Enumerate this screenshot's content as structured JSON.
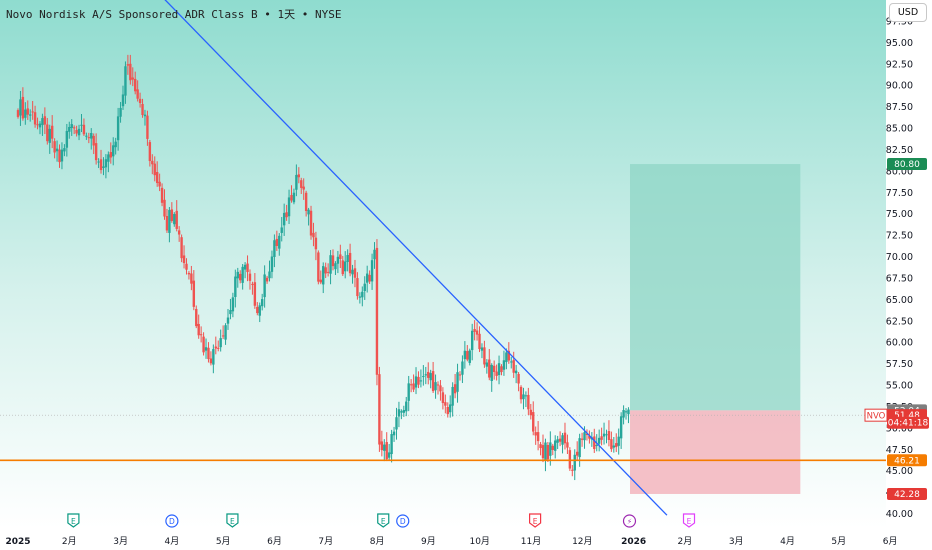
{
  "header": {
    "title": "Novo Nordisk A/S Sponsored ADR Class B • 1天 • NYSE",
    "currency_button": "USD"
  },
  "colors": {
    "up": "#26a69a",
    "down": "#ef5350",
    "trendline": "#2962ff",
    "support": "#f57c00",
    "target_zone": "#8fd6c6",
    "stop_zone": "#f3b5bd",
    "target_badge": "#1b8c55",
    "stop_badge": "#e53935",
    "event_earnings": "#089981",
    "event_dividend": "#2962ff",
    "event_earnings_red": "#f23645",
    "event_flash": "#9c27b0",
    "event_earnings_future": "#e040fb"
  },
  "chart_data": {
    "type": "candlestick",
    "title": "Novo Nordisk A/S Sponsored ADR Class B • 1天 • NYSE",
    "y_axis": {
      "ticks": [
        "40.00",
        "42.50",
        "45.00",
        "47.50",
        "50.00",
        "52.50",
        "55.00",
        "57.50",
        "60.00",
        "62.50",
        "65.00",
        "67.50",
        "70.00",
        "72.50",
        "75.00",
        "77.50",
        "80.00",
        "82.50",
        "85.00",
        "87.50",
        "90.00",
        "92.50",
        "95.00",
        "97.50"
      ],
      "range": [
        39.5,
        98.5
      ],
      "position": "right"
    },
    "x_axis": {
      "labels": [
        "2025",
        "2月",
        "3月",
        "4月",
        "5月",
        "6月",
        "7月",
        "8月",
        "9月",
        "10月",
        "11月",
        "12月",
        "2026",
        "2月",
        "3月",
        "4月",
        "5月",
        "6月"
      ],
      "label_months": [
        0,
        1,
        2,
        3,
        4,
        5,
        6,
        7,
        8,
        9,
        10,
        11,
        12,
        13,
        14,
        15,
        16,
        17
      ]
    },
    "price_path": [
      {
        "m": 0.0,
        "p": 87.5
      },
      {
        "m": 0.3,
        "p": 86.5
      },
      {
        "m": 0.6,
        "p": 84
      },
      {
        "m": 0.8,
        "p": 81
      },
      {
        "m": 1.0,
        "p": 85
      },
      {
        "m": 1.3,
        "p": 85.5
      },
      {
        "m": 1.5,
        "p": 82
      },
      {
        "m": 1.7,
        "p": 80
      },
      {
        "m": 1.9,
        "p": 83
      },
      {
        "m": 2.1,
        "p": 92
      },
      {
        "m": 2.3,
        "p": 90
      },
      {
        "m": 2.45,
        "p": 87
      },
      {
        "m": 2.6,
        "p": 80
      },
      {
        "m": 2.75,
        "p": 79
      },
      {
        "m": 2.9,
        "p": 74
      },
      {
        "m": 3.05,
        "p": 76
      },
      {
        "m": 3.2,
        "p": 70
      },
      {
        "m": 3.35,
        "p": 68
      },
      {
        "m": 3.5,
        "p": 62
      },
      {
        "m": 3.65,
        "p": 59
      },
      {
        "m": 3.8,
        "p": 58.5
      },
      {
        "m": 3.95,
        "p": 61
      },
      {
        "m": 4.1,
        "p": 63
      },
      {
        "m": 4.25,
        "p": 67
      },
      {
        "m": 4.4,
        "p": 69
      },
      {
        "m": 4.55,
        "p": 66
      },
      {
        "m": 4.7,
        "p": 64
      },
      {
        "m": 4.85,
        "p": 68
      },
      {
        "m": 5.0,
        "p": 71
      },
      {
        "m": 5.15,
        "p": 73
      },
      {
        "m": 5.3,
        "p": 77
      },
      {
        "m": 5.45,
        "p": 80
      },
      {
        "m": 5.6,
        "p": 76
      },
      {
        "m": 5.75,
        "p": 72
      },
      {
        "m": 5.85,
        "p": 68
      },
      {
        "m": 6.0,
        "p": 68.5
      },
      {
        "m": 6.15,
        "p": 69.5
      },
      {
        "m": 6.3,
        "p": 69
      },
      {
        "m": 6.45,
        "p": 69.5
      },
      {
        "m": 6.55,
        "p": 67
      },
      {
        "m": 6.7,
        "p": 65
      },
      {
        "m": 6.85,
        "p": 68
      },
      {
        "m": 6.95,
        "p": 70
      },
      {
        "m": 7.02,
        "p": 48
      },
      {
        "m": 7.15,
        "p": 47
      },
      {
        "m": 7.3,
        "p": 49
      },
      {
        "m": 7.45,
        "p": 51.5
      },
      {
        "m": 7.6,
        "p": 54
      },
      {
        "m": 7.75,
        "p": 56
      },
      {
        "m": 7.9,
        "p": 55.5
      },
      {
        "m": 8.05,
        "p": 56
      },
      {
        "m": 8.2,
        "p": 54
      },
      {
        "m": 8.35,
        "p": 52
      },
      {
        "m": 8.5,
        "p": 54
      },
      {
        "m": 8.65,
        "p": 57
      },
      {
        "m": 8.8,
        "p": 60
      },
      {
        "m": 8.95,
        "p": 61
      },
      {
        "m": 9.1,
        "p": 58
      },
      {
        "m": 9.25,
        "p": 56
      },
      {
        "m": 9.4,
        "p": 57
      },
      {
        "m": 9.55,
        "p": 59
      },
      {
        "m": 9.7,
        "p": 56
      },
      {
        "m": 9.85,
        "p": 53
      },
      {
        "m": 10.0,
        "p": 52
      },
      {
        "m": 10.1,
        "p": 48
      },
      {
        "m": 10.25,
        "p": 47
      },
      {
        "m": 10.4,
        "p": 47.5
      },
      {
        "m": 10.55,
        "p": 49
      },
      {
        "m": 10.7,
        "p": 48
      },
      {
        "m": 10.8,
        "p": 45
      },
      {
        "m": 10.95,
        "p": 48
      },
      {
        "m": 11.1,
        "p": 49.5
      },
      {
        "m": 11.25,
        "p": 48
      },
      {
        "m": 11.4,
        "p": 49
      },
      {
        "m": 11.55,
        "p": 48.5
      },
      {
        "m": 11.7,
        "p": 48
      },
      {
        "m": 11.8,
        "p": 52
      },
      {
        "m": 11.9,
        "p": 51.5
      }
    ],
    "last_candles": {
      "month": 11.9,
      "count": 3
    },
    "trendline": {
      "from": {
        "m": 2.7,
        "p": 101
      },
      "to": {
        "m": 12.65,
        "p": 39.8
      }
    },
    "horizontal_line": {
      "price": 46.21,
      "label": "46.21"
    },
    "position_tool": {
      "start_month": 11.93,
      "end_month": 15.25,
      "entry": 52.04,
      "target": 80.8,
      "stop": 42.28
    },
    "price_badges": [
      {
        "label": "80.80",
        "price": 80.8,
        "kind": "target"
      },
      {
        "label": "52.04",
        "price": 52.04,
        "kind": "entry"
      },
      {
        "label": "51.48",
        "price": 51.48,
        "kind": "current"
      },
      {
        "label": "04:41:18",
        "price": 50.6,
        "kind": "countdown"
      },
      {
        "label": "46.21",
        "price": 46.21,
        "kind": "support"
      },
      {
        "label": "42.28",
        "price": 42.28,
        "kind": "stop"
      }
    ],
    "symbol_tag": {
      "label": "NVO",
      "price": 51.48
    },
    "events": [
      {
        "label": "E",
        "month": 1.08,
        "kind": "earnings"
      },
      {
        "label": "D",
        "month": 3.0,
        "kind": "dividend"
      },
      {
        "label": "E",
        "month": 4.18,
        "kind": "earnings"
      },
      {
        "label": "E",
        "month": 7.12,
        "kind": "earnings"
      },
      {
        "label": "D",
        "month": 7.5,
        "kind": "dividend"
      },
      {
        "label": "E",
        "month": 10.08,
        "kind": "earnings_red"
      },
      {
        "label": "⚡",
        "month": 11.92,
        "kind": "flash"
      },
      {
        "label": "E",
        "month": 13.08,
        "kind": "earnings_future"
      }
    ]
  }
}
